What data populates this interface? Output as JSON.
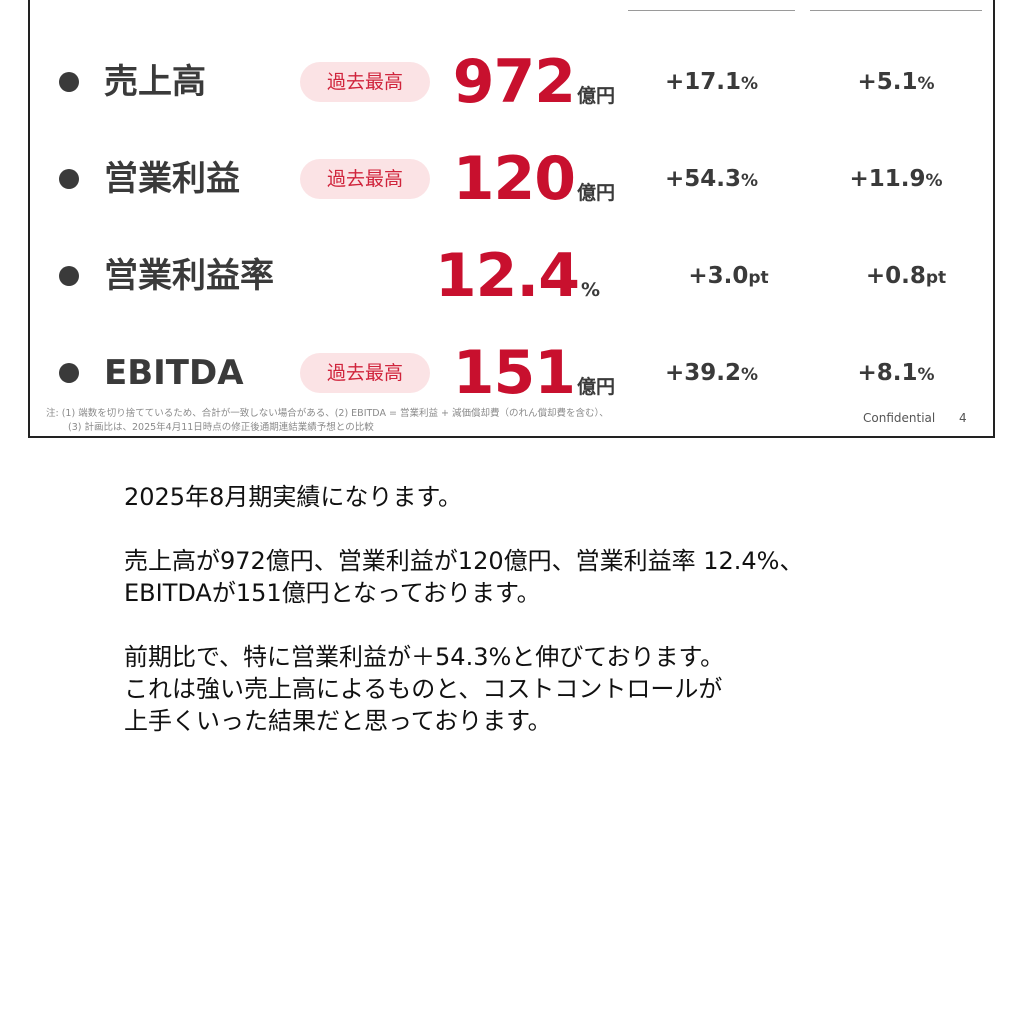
{
  "slide": {
    "metrics": [
      {
        "label": "売上高",
        "badge": "過去最高",
        "value": "972",
        "unit": "億円",
        "yoy_num": "+17.1",
        "yoy_unit": "%",
        "plan_num": "+5.1",
        "plan_unit": "%"
      },
      {
        "label": "営業利益",
        "badge": "過去最高",
        "value": "120",
        "unit": "億円",
        "yoy_num": "+54.3",
        "yoy_unit": "%",
        "plan_num": "+11.9",
        "plan_unit": "%"
      },
      {
        "label": "営業利益率",
        "badge": "",
        "value": "12.4",
        "unit": "%",
        "yoy_num": "+3.0",
        "yoy_unit": "pt",
        "plan_num": "+0.8",
        "plan_unit": "pt"
      },
      {
        "label": "EBITDA",
        "badge": "過去最高",
        "value": "151",
        "unit": "億円",
        "yoy_num": "+39.2",
        "yoy_unit": "%",
        "plan_num": "+8.1",
        "plan_unit": "%"
      }
    ],
    "footnote_line1": "注: (1) 端数を切り捨てているため、合計が一致しない場合がある、(2) EBITDA = 営業利益 + 減価償却費（のれん償却費を含む）、",
    "footnote_line2": "(3) 計画比は、2025年4月11日時点の修正後通期連結業績予想との比較",
    "confidential": "Confidential",
    "page_number": "4",
    "colors": {
      "accent_red": "#c8102e",
      "badge_bg": "#fbe3e5",
      "badge_text": "#d0243c"
    }
  },
  "transcript": {
    "p1": "2025年8月期実績になります。",
    "p2_line1": "売上高が972億円、営業利益が120億円、営業利益率 12.4%、",
    "p2_line2": "EBITDAが151億円となっております。",
    "p3_line1": "前期比で、特に営業利益が＋54.3%と伸びております。",
    "p3_line2": "これは強い売上高によるものと、コストコントロールが",
    "p3_line3": "上手くいった結果だと思っております。"
  }
}
